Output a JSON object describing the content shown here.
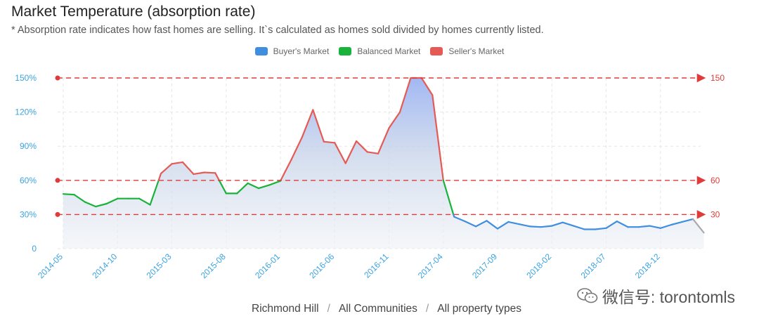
{
  "header": {
    "title": "Market Temperature (absorption rate)",
    "subtitle": "* Absorption rate indicates how fast homes are selling. It`s calculated as homes sold divided by homes currently listed."
  },
  "legend": {
    "items": [
      {
        "label": "Buyer's Market",
        "color": "#3f8ee0"
      },
      {
        "label": "Balanced Market",
        "color": "#19b23b"
      },
      {
        "label": "Seller's Market",
        "color": "#e55a55"
      }
    ]
  },
  "footer": {
    "region": "Richmond Hill",
    "community": "All Communities",
    "property": "All property types",
    "separator": "/"
  },
  "watermark": {
    "text": "微信号: torontomls"
  },
  "chart_data": {
    "type": "area",
    "y_ticks": [
      {
        "value": 0,
        "label": "0"
      },
      {
        "value": 30,
        "label": "30%"
      },
      {
        "value": 60,
        "label": "60%"
      },
      {
        "value": 90,
        "label": "90%"
      },
      {
        "value": 120,
        "label": "120%"
      },
      {
        "value": 150,
        "label": "150%"
      }
    ],
    "ylim": [
      0,
      150
    ],
    "x_tick_labels": [
      "2014-05",
      "2014-10",
      "2015-03",
      "2015-08",
      "2016-01",
      "2016-06",
      "2016-11",
      "2017-04",
      "2017-09",
      "2018-02",
      "2018-07",
      "2018-12"
    ],
    "x_tick_every_months": 5,
    "x_start": "2014-05",
    "threshold_lines": [
      {
        "value": 150,
        "label": "150"
      },
      {
        "value": 60,
        "label": "60"
      },
      {
        "value": 30,
        "label": "30"
      }
    ],
    "thresholds": {
      "buyers_below": 30,
      "sellers_above": 60
    },
    "colors": {
      "buyers": "#3f8ee0",
      "balanced": "#19b23b",
      "sellers": "#e55a55",
      "threshold": "#e03b3b",
      "axis_text": "#3aa3e0"
    },
    "grid": true,
    "legend_position": "top-center",
    "values": [
      48,
      47.5,
      41,
      37,
      39.5,
      44,
      44,
      44,
      38.5,
      66,
      74.5,
      76,
      65.5,
      67,
      66.5,
      48.5,
      48.5,
      57.5,
      53,
      56,
      59.5,
      78,
      98,
      122,
      94,
      93,
      75,
      94.5,
      85,
      83.5,
      106,
      120,
      150,
      150,
      135,
      60,
      28,
      24,
      19.5,
      24.5,
      17.5,
      23.5,
      21.5,
      19.5,
      19,
      20,
      23,
      20,
      17,
      17,
      18,
      24,
      19,
      19,
      20,
      18,
      21,
      23.5,
      26,
      14
    ]
  }
}
